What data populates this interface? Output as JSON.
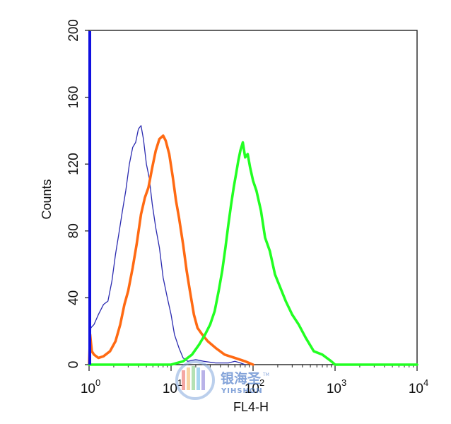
{
  "chart_data": {
    "type": "line",
    "chart_subtype": "flow-cytometry histogram",
    "xlabel": "FL4-H",
    "ylabel": "Counts",
    "x_scale": "log",
    "xlim": [
      1,
      10000
    ],
    "ylim": [
      0,
      200
    ],
    "x_ticks": [
      {
        "base": "10",
        "exp": "0"
      },
      {
        "base": "10",
        "exp": "1"
      },
      {
        "base": "10",
        "exp": "2"
      },
      {
        "base": "10",
        "exp": "3"
      },
      {
        "base": "10",
        "exp": "4"
      }
    ],
    "y_ticks": [
      "0",
      "40",
      "80",
      "120",
      "160",
      "200"
    ],
    "grid": false,
    "series": [
      {
        "color": "#2b2bb0",
        "line_style": "thin",
        "x": [
          1.0,
          1.05,
          1.15,
          1.3,
          1.5,
          1.7,
          1.9,
          2.1,
          2.3,
          2.55,
          2.8,
          3.1,
          3.4,
          3.7,
          4.0,
          4.3,
          4.6,
          5.0,
          5.4,
          5.9,
          6.5,
          7.2,
          8.0,
          9.0,
          10.0,
          11.0,
          12.5,
          14.0,
          16.0,
          20.0,
          25.0,
          35.0,
          50.0,
          60.0,
          70.0,
          80.0
        ],
        "y": [
          0,
          22,
          24,
          30,
          36,
          38,
          50,
          66,
          78,
          92,
          104,
          120,
          130,
          133,
          141,
          143,
          135,
          120,
          112,
          96,
          82,
          70,
          52,
          40,
          30,
          18,
          10,
          4,
          2,
          3,
          2,
          1,
          1,
          2,
          1,
          0
        ]
      },
      {
        "color": "#ff6a13",
        "line_style": "thick",
        "x": [
          1.0,
          1.03,
          1.08,
          1.15,
          1.3,
          1.5,
          1.8,
          2.1,
          2.4,
          2.7,
          3.0,
          3.4,
          3.8,
          4.3,
          4.8,
          5.3,
          5.9,
          6.5,
          7.2,
          8.0,
          8.6,
          9.5,
          10.5,
          11.5,
          12.5,
          14.0,
          15.5,
          17.0,
          19.0,
          21.0,
          24.0,
          28.0,
          35.0,
          45.0,
          60.0,
          80.0,
          100.0
        ],
        "y": [
          0,
          18,
          8,
          6,
          4,
          5,
          8,
          14,
          24,
          36,
          44,
          58,
          72,
          90,
          100,
          106,
          118,
          128,
          135,
          137,
          134,
          126,
          112,
          98,
          88,
          72,
          56,
          44,
          30,
          22,
          18,
          14,
          10,
          6,
          4,
          2,
          0
        ]
      },
      {
        "color": "#22ff22",
        "line_style": "thick",
        "x": [
          1.0,
          10.0,
          14.0,
          18.0,
          22.0,
          26.0,
          30.0,
          34.0,
          38.0,
          42.0,
          46.0,
          50.0,
          54.0,
          58.0,
          62.0,
          66.0,
          70.0,
          75.0,
          80.0,
          86.0,
          92.0,
          100.0,
          110.0,
          125.0,
          140.0,
          160.0,
          185.0,
          215.0,
          250.0,
          300.0,
          360.0,
          440.0,
          550.0,
          700.0,
          900.0,
          1000.0,
          1100.0,
          10000.0
        ],
        "y": [
          0,
          0,
          2,
          6,
          12,
          18,
          24,
          32,
          44,
          56,
          70,
          84,
          96,
          106,
          114,
          122,
          128,
          133,
          124,
          126,
          118,
          110,
          104,
          92,
          76,
          68,
          54,
          46,
          38,
          30,
          24,
          16,
          8,
          6,
          2,
          0,
          0,
          0
        ]
      }
    ]
  },
  "watermark": {
    "chinese": "银海圣",
    "latin": "YIHSHON",
    "tm": "TM"
  }
}
